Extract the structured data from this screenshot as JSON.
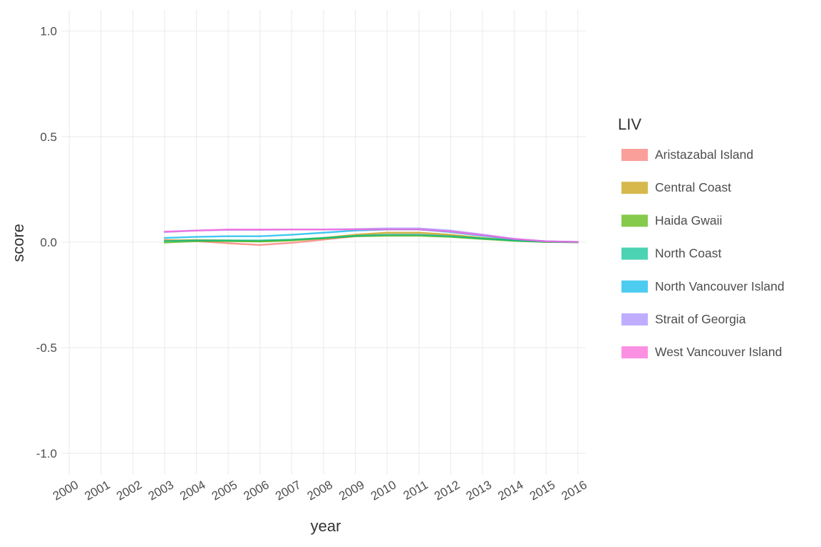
{
  "chart_data": {
    "type": "line",
    "xlabel": "year",
    "ylabel": "score",
    "x": [
      2000,
      2001,
      2002,
      2003,
      2004,
      2005,
      2006,
      2007,
      2008,
      2009,
      2010,
      2011,
      2012,
      2013,
      2014,
      2015,
      2016
    ],
    "xlim": [
      1999.75,
      2016.25
    ],
    "ylim": [
      -1.1,
      1.1
    ],
    "yticks": [
      -1.0,
      -0.5,
      0.0,
      0.5,
      1.0
    ],
    "ytick_labels": [
      "-1.0",
      "-0.5",
      "0.0",
      "0.5",
      "1.0"
    ],
    "grid": true,
    "legend": {
      "title": "LIV",
      "placement": "right"
    },
    "series": [
      {
        "name": "Aristazabal Island",
        "color": "#F8766D",
        "values": [
          null,
          null,
          null,
          0.01,
          0.005,
          -0.005,
          -0.013,
          -0.003,
          0.012,
          0.028,
          0.035,
          0.035,
          0.028,
          0.018,
          0.008,
          0.001,
          0.0
        ]
      },
      {
        "name": "Central Coast",
        "color": "#C49A00",
        "values": [
          null,
          null,
          null,
          0.008,
          0.01,
          0.008,
          0.005,
          0.01,
          0.02,
          0.035,
          0.045,
          0.045,
          0.035,
          0.02,
          0.008,
          0.001,
          0.0
        ]
      },
      {
        "name": "Haida Gwaii",
        "color": "#53B400",
        "values": [
          null,
          null,
          null,
          -0.002,
          0.005,
          0.005,
          0.003,
          0.008,
          0.018,
          0.028,
          0.03,
          0.03,
          0.025,
          0.015,
          0.006,
          0.001,
          0.0
        ]
      },
      {
        "name": "North Coast",
        "color": "#00C094",
        "values": [
          null,
          null,
          null,
          0.005,
          0.008,
          0.008,
          0.008,
          0.012,
          0.02,
          0.03,
          0.035,
          0.035,
          0.028,
          0.018,
          0.008,
          0.002,
          0.0
        ]
      },
      {
        "name": "North Vancouver Island",
        "color": "#00B6EB",
        "values": [
          null,
          null,
          null,
          0.02,
          0.025,
          0.028,
          0.028,
          0.035,
          0.045,
          0.055,
          0.06,
          0.06,
          0.048,
          0.03,
          0.014,
          0.004,
          0.001
        ]
      },
      {
        "name": "Strait of Georgia",
        "color": "#A58AFF",
        "values": [
          null,
          null,
          null,
          0.048,
          0.055,
          0.058,
          0.058,
          0.06,
          0.06,
          0.062,
          0.065,
          0.065,
          0.055,
          0.036,
          0.016,
          0.004,
          0.001
        ]
      },
      {
        "name": "West Vancouver Island",
        "color": "#FB61D7",
        "values": [
          null,
          null,
          null,
          0.05,
          0.055,
          0.06,
          0.06,
          0.06,
          0.06,
          0.06,
          0.06,
          0.06,
          0.05,
          0.033,
          0.015,
          0.004,
          0.001
        ]
      }
    ]
  }
}
